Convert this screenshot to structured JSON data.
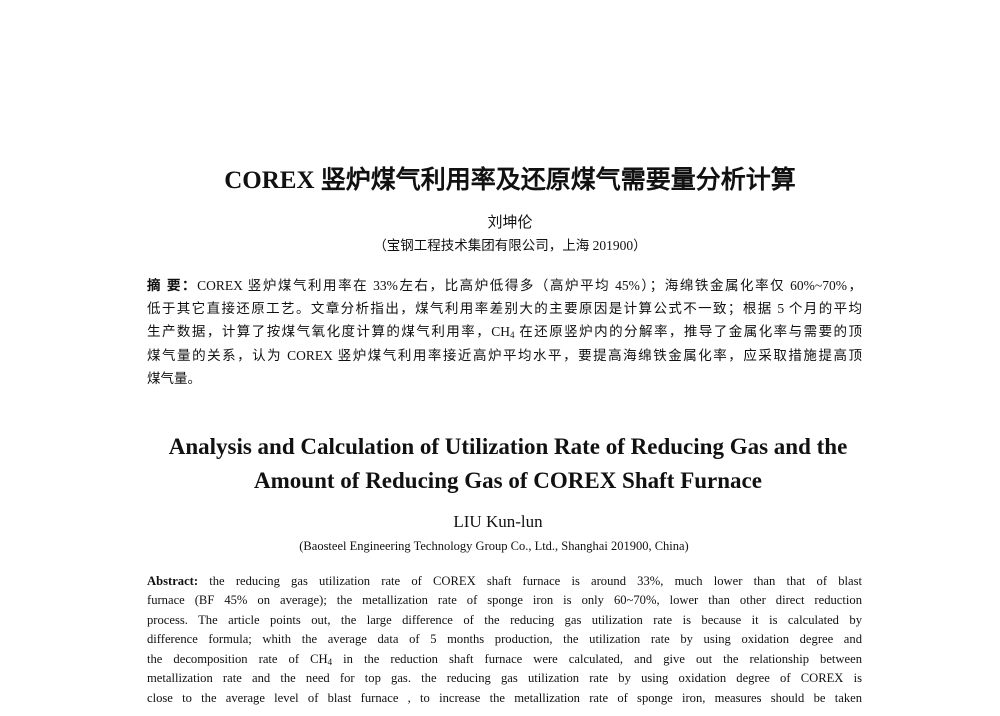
{
  "cn": {
    "title": "COREX 竖炉煤气利用率及还原煤气需要量分析计算",
    "author": "刘坤伦",
    "affiliation": "（宝钢工程技术集团有限公司，上海  201900）",
    "abstract_label": "摘  要：",
    "abstract_lines": [
      "COREX 竖炉煤气利用率在 33%左右，比高炉低得多（高炉平均 45%）；海绵铁金属化率仅 60%~70%，",
      "低于其它直接还原工艺。文章分析指出，煤气利用率差别大的主要原因是计算公式不一致；根据 5 个月的平均",
      "生产数据，计算了按煤气氧化度计算的煤气利用率，CH4 在还原竖炉内的分解率，推导了金属化率与需要的顶",
      "煤气量的关系，认为 COREX 竖炉煤气利用率接近高炉平均水平，要提高海绵铁金属化率，应采取措施提高顶",
      "煤气量。"
    ]
  },
  "en": {
    "title_line1": "Analysis and Calculation of Utilization Rate of Reducing Gas and the",
    "title_line2": "Amount of Reducing Gas of COREX Shaft Furnace",
    "author": "LIU Kun-lun",
    "affiliation": "(Baosteel Engineering Technology Group Co., Ltd., Shanghai 201900, China)",
    "abstract_label": "Abstract:",
    "abstract_lines": [
      "the reducing gas utilization rate of COREX shaft furnace is around 33%, much lower than that of  blast",
      "furnace (BF 45% on average); the metallization rate of sponge iron is only 60~70%, lower than other direct reduction",
      "process. The article points out, the large difference of the reducing gas utilization rate is because it is calculated by",
      "difference formula; whith the average data of 5 months production, the utilization rate by using oxidation degree and",
      "the decomposition rate of CH4 in the reduction shaft furnace were calculated, and give out the relationship between",
      "metallization rate and the need for top gas. the reducing gas utilization rate by using oxidation degree of COREX is",
      "close to the average level of blast furnace , to increase the metallization rate of sponge iron, measures should be taken"
    ]
  }
}
